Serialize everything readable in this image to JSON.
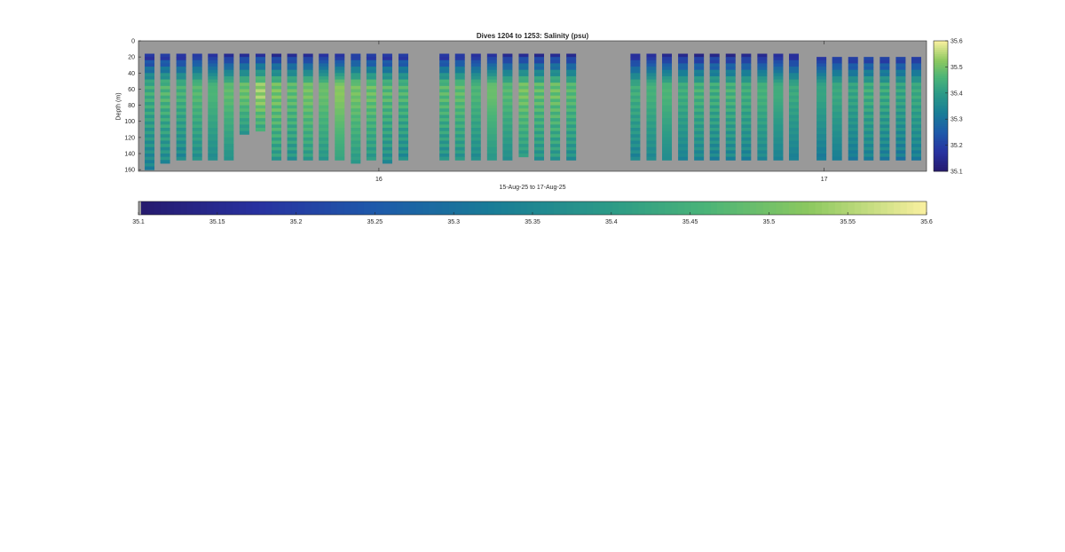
{
  "chart_data": {
    "type": "heatmap",
    "title": "Dives 1204 to 1253: Salinity (psu)",
    "xlabel": "15-Aug-25 to 17-Aug-25",
    "ylabel": "Depth (m)",
    "x_tick_labels": [
      "16",
      "17"
    ],
    "x_ticks": [
      16,
      17
    ],
    "xlim": [
      15.46,
      17.23
    ],
    "y_tick_labels": [
      "0",
      "20",
      "40",
      "60",
      "80",
      "100",
      "120",
      "140",
      "160"
    ],
    "y_ticks": [
      0,
      20,
      40,
      60,
      80,
      100,
      120,
      140,
      160
    ],
    "ylim": [
      0,
      162
    ],
    "y_reversed": true,
    "colorbar": {
      "label": "Salinity (psu)",
      "clim": [
        35.1,
        35.6
      ],
      "ticks": [
        35.1,
        35.2,
        35.3,
        35.4,
        35.5,
        35.6
      ],
      "tick_labels": [
        "35.1",
        "35.2",
        "35.3",
        "35.4",
        "35.5",
        "35.6"
      ],
      "colormap": "parula"
    },
    "horizontal_colorbar": {
      "ticks": [
        35.1,
        35.15,
        35.2,
        35.25,
        35.3,
        35.35,
        35.4,
        35.45,
        35.5,
        35.55,
        35.6
      ],
      "tick_labels": [
        "35.1",
        "35.15",
        "35.2",
        "35.25",
        "35.3",
        "35.35",
        "35.4",
        "35.45",
        "35.5",
        "35.55",
        "35.6"
      ]
    },
    "no_data_color": "#999999",
    "dive_groups": [
      {
        "name": "group-1",
        "time": [
          15.485,
          15.52,
          15.556,
          15.592,
          15.627,
          15.663,
          15.698,
          15.734,
          15.77,
          15.805,
          15.841,
          15.876,
          15.912,
          15.948,
          15.983,
          16.019,
          16.055
        ],
        "max_depth": [
          157,
          150,
          145,
          146,
          146,
          146,
          112,
          110,
          146,
          146,
          147,
          146,
          147,
          148,
          147,
          148,
          145
        ],
        "surface_value": [
          35.14,
          35.15,
          35.14,
          35.16,
          35.15,
          35.14,
          35.15,
          35.16,
          35.14,
          35.15,
          35.14,
          35.15,
          35.14,
          35.16,
          35.15,
          35.14,
          35.15
        ],
        "peak_value": [
          35.44,
          35.46,
          35.45,
          35.47,
          35.46,
          35.48,
          35.49,
          35.53,
          35.5,
          35.48,
          35.5,
          35.49,
          35.52,
          35.5,
          35.49,
          35.47,
          35.46
        ]
      },
      {
        "name": "group-2",
        "time": [
          16.147,
          16.182,
          16.218,
          16.254,
          16.289,
          16.325,
          16.36,
          16.396,
          16.432
        ],
        "max_depth": [
          146,
          146,
          147,
          145,
          146,
          140,
          146,
          146,
          146
        ],
        "surface_value": [
          35.14,
          35.15,
          35.14,
          35.15,
          35.14,
          35.15,
          35.14,
          35.15,
          35.14
        ],
        "peak_value": [
          35.47,
          35.48,
          35.46,
          35.49,
          35.47,
          35.5,
          35.48,
          35.49,
          35.47
        ]
      },
      {
        "name": "group-3",
        "time": [
          16.576,
          16.612,
          16.647,
          16.683,
          16.719,
          16.754,
          16.79,
          16.825,
          16.861,
          16.897,
          16.932
        ],
        "max_depth": [
          147,
          147,
          147,
          146,
          145,
          146,
          145,
          145,
          146,
          145,
          147
        ],
        "surface_value": [
          35.13,
          35.14,
          35.13,
          35.14,
          35.13,
          35.14,
          35.13,
          35.14,
          35.13,
          35.14,
          35.13
        ],
        "peak_value": [
          35.44,
          35.45,
          35.46,
          35.44,
          35.45,
          35.44,
          35.45,
          35.44,
          35.45,
          35.44,
          35.43
        ]
      },
      {
        "name": "group-4",
        "time": [
          16.994,
          17.029,
          17.065,
          17.1,
          17.136,
          17.172,
          17.207
        ],
        "max_depth": [
          144,
          145,
          145,
          144,
          145,
          144,
          145
        ],
        "surface_value": [
          35.13,
          35.14,
          35.13,
          35.14,
          35.13,
          35.14,
          35.13
        ],
        "peak_value": [
          35.42,
          35.43,
          35.42,
          35.44,
          35.43,
          35.42,
          35.43
        ]
      }
    ]
  }
}
